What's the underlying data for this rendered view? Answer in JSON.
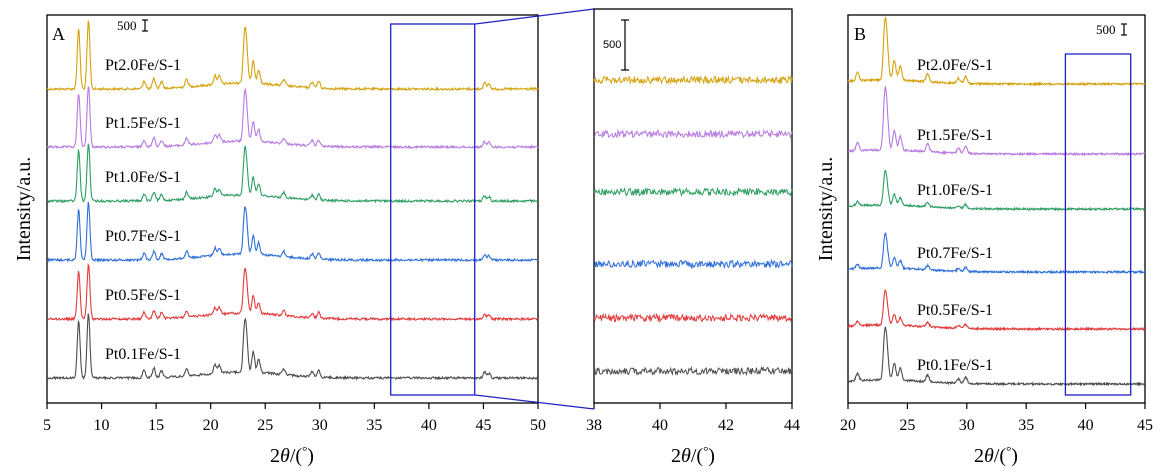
{
  "chart_data": [
    {
      "type": "line",
      "panel": "A",
      "xlabel_parts": [
        "2",
        "θ",
        "/(",
        "°",
        ")"
      ],
      "ylabel": "Intensity/a.u.",
      "xlim": [
        5,
        50
      ],
      "xticks": [
        "5",
        "10",
        "15",
        "20",
        "25",
        "30",
        "35",
        "40",
        "45",
        "50"
      ],
      "scale_bar": "500",
      "highlight_box_x": [
        36.5,
        44.2
      ],
      "series": [
        {
          "name": "Pt2.0Fe/S-1",
          "color": "#d4a20c"
        },
        {
          "name": "Pt1.5Fe/S-1",
          "color": "#b77be0"
        },
        {
          "name": "Pt1.0Fe/S-1",
          "color": "#2e9e62"
        },
        {
          "name": "Pt0.7Fe/S-1",
          "color": "#2f6fd8"
        },
        {
          "name": "Pt0.5Fe/S-1",
          "color": "#e23b3b"
        },
        {
          "name": "Pt0.1Fe/S-1",
          "color": "#4d4d4d"
        }
      ],
      "peaks_2theta": [
        7.9,
        8.8,
        13.9,
        14.8,
        15.5,
        17.8,
        20.4,
        20.8,
        23.1,
        23.3,
        23.9,
        24.4,
        26.7,
        29.3,
        29.9,
        45.1,
        45.5
      ]
    },
    {
      "type": "line",
      "panel": "A-zoom",
      "xlabel_parts": [
        "2",
        "θ",
        "/(",
        "°",
        ")"
      ],
      "xlim": [
        38,
        44
      ],
      "xticks": [
        "38",
        "40",
        "42",
        "44"
      ],
      "scale_bar": "500"
    },
    {
      "type": "line",
      "panel": "B",
      "xlabel_parts": [
        "2",
        "θ",
        "/(",
        "°",
        ")"
      ],
      "ylabel": "Intensity/a.u.",
      "xlim": [
        20,
        45
      ],
      "xticks": [
        "20",
        "25",
        "30",
        "35",
        "40",
        "45"
      ],
      "scale_bar": "500",
      "highlight_box_x": [
        38.3,
        43.8
      ],
      "series": [
        {
          "name": "Pt2.0Fe/S-1",
          "color": "#d4a20c"
        },
        {
          "name": "Pt1.5Fe/S-1",
          "color": "#b77be0"
        },
        {
          "name": "Pt1.0Fe/S-1",
          "color": "#2e9e62"
        },
        {
          "name": "Pt0.7Fe/S-1",
          "color": "#2f6fd8"
        },
        {
          "name": "Pt0.5Fe/S-1",
          "color": "#e23b3b"
        },
        {
          "name": "Pt0.1Fe/S-1",
          "color": "#4d4d4d"
        }
      ],
      "peaks_2theta": [
        20.8,
        23.1,
        23.3,
        23.9,
        24.4,
        26.7,
        29.3,
        29.9
      ]
    }
  ]
}
